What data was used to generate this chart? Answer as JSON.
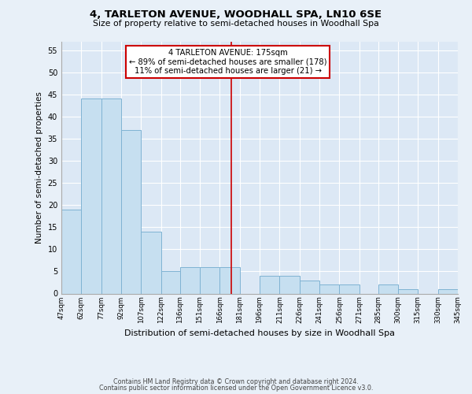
{
  "title": "4, TARLETON AVENUE, WOODHALL SPA, LN10 6SE",
  "subtitle": "Size of property relative to semi-detached houses in Woodhall Spa",
  "xlabel": "Distribution of semi-detached houses by size in Woodhall Spa",
  "ylabel": "Number of semi-detached properties",
  "bar_edges": [
    47,
    62,
    77,
    92,
    107,
    122,
    136,
    151,
    166,
    181,
    196,
    211,
    226,
    241,
    256,
    271,
    285,
    300,
    315,
    330,
    345
  ],
  "bar_heights": [
    19,
    44,
    44,
    37,
    14,
    5,
    6,
    6,
    6,
    0,
    4,
    4,
    3,
    2,
    2,
    0,
    2,
    1,
    0,
    1
  ],
  "bar_color": "#c6dff0",
  "bar_edge_color": "#7fb3d3",
  "vline_x": 175,
  "vline_color": "#cc0000",
  "annotation_title": "4 TARLETON AVENUE: 175sqm",
  "annotation_line1": "← 89% of semi-detached houses are smaller (178)",
  "annotation_line2": "11% of semi-detached houses are larger (21) →",
  "annotation_box_color": "#ffffff",
  "annotation_box_edge": "#cc0000",
  "ylim": [
    0,
    57
  ],
  "yticks": [
    0,
    5,
    10,
    15,
    20,
    25,
    30,
    35,
    40,
    45,
    50,
    55
  ],
  "tick_labels": [
    "47sqm",
    "62sqm",
    "77sqm",
    "92sqm",
    "107sqm",
    "122sqm",
    "136sqm",
    "151sqm",
    "166sqm",
    "181sqm",
    "196sqm",
    "211sqm",
    "226sqm",
    "241sqm",
    "256sqm",
    "271sqm",
    "285sqm",
    "300sqm",
    "315sqm",
    "330sqm",
    "345sqm"
  ],
  "footer1": "Contains HM Land Registry data © Crown copyright and database right 2024.",
  "footer2": "Contains public sector information licensed under the Open Government Licence v3.0.",
  "background_color": "#e8f0f8",
  "plot_bg_color": "#dce8f5",
  "grid_color": "#ffffff"
}
